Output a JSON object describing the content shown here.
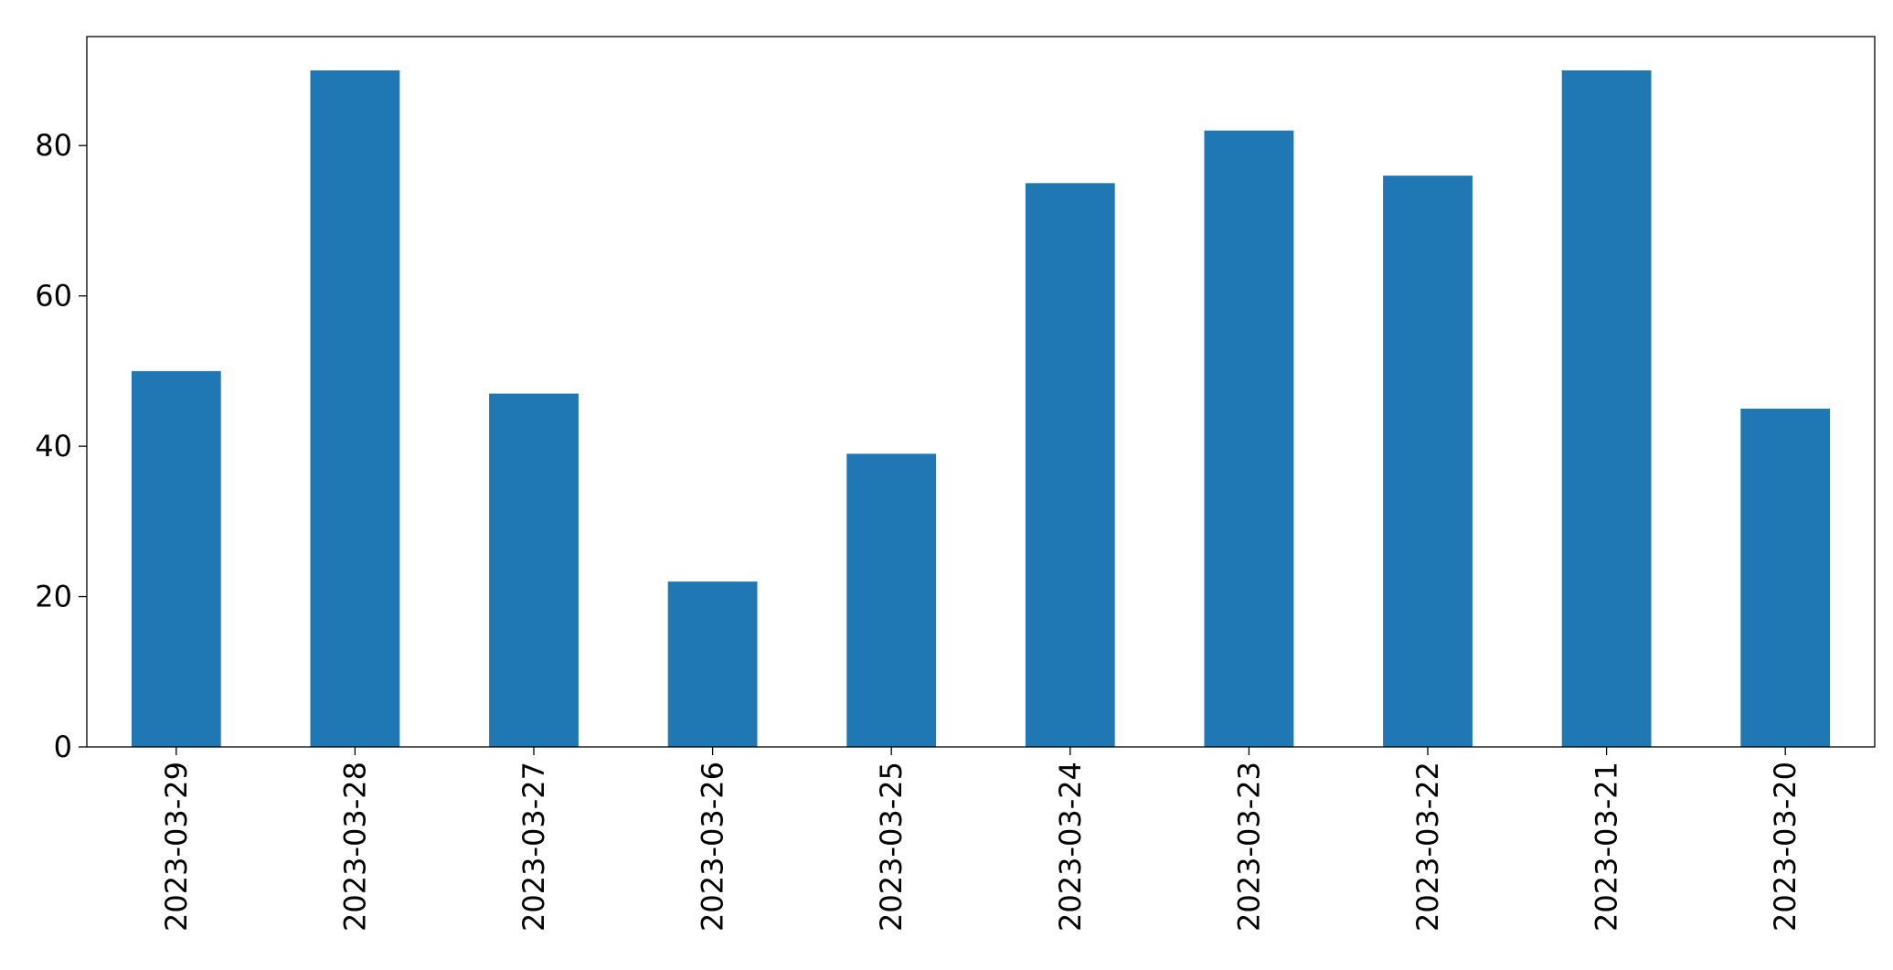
{
  "chart_data": {
    "type": "bar",
    "categories": [
      "2023-03-29",
      "2023-03-28",
      "2023-03-27",
      "2023-03-26",
      "2023-03-25",
      "2023-03-24",
      "2023-03-23",
      "2023-03-22",
      "2023-03-21",
      "2023-03-20"
    ],
    "values": [
      50,
      90,
      47,
      22,
      39,
      75,
      82,
      76,
      90,
      45
    ],
    "color": "#1f77b4",
    "ylim": [
      0,
      94.5
    ],
    "yticks": [
      0,
      20,
      40,
      60,
      80
    ],
    "grid": false
  }
}
